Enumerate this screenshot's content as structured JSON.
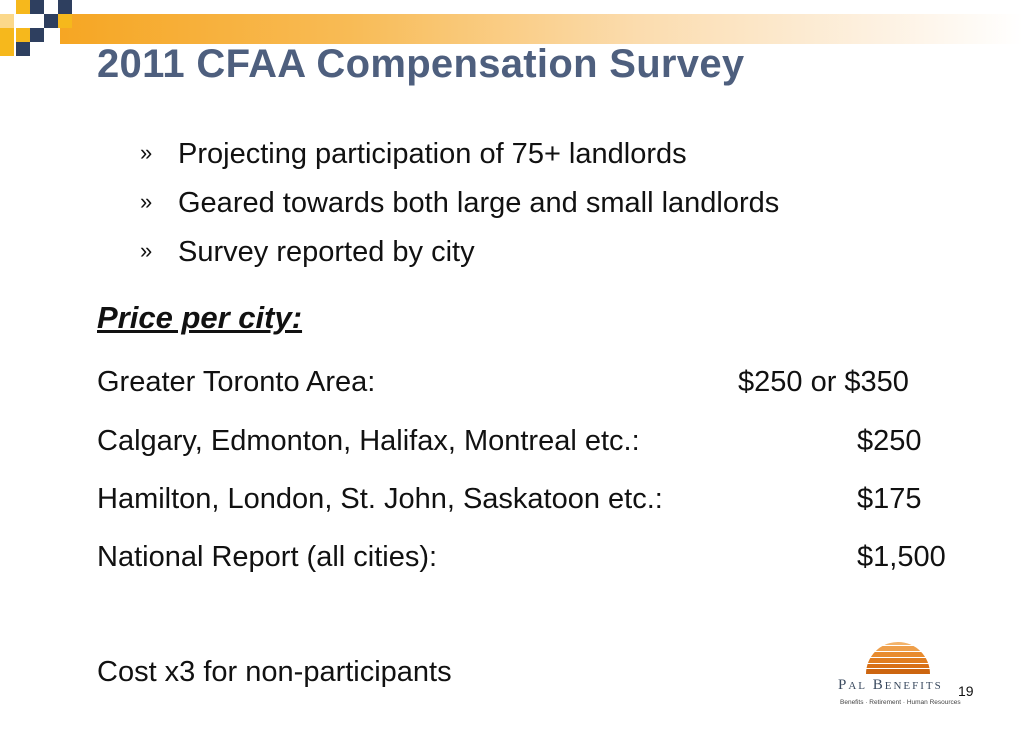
{
  "slide": {
    "title": "2011 CFAA Compensation Survey",
    "bullet_marker": "»",
    "bullets": [
      "Projecting participation of 75+ landlords",
      "Geared towards both large and small landlords",
      "Survey reported by city"
    ],
    "pricing": {
      "heading": "Price per city:",
      "rows": [
        {
          "label": "Greater Toronto Area:",
          "price": "$250 or $350"
        },
        {
          "label": "Calgary, Edmonton, Halifax, Montreal etc.:",
          "price": "$250"
        },
        {
          "label": "Hamilton, London, St. John, Saskatoon etc.:",
          "price": "$175"
        },
        {
          "label": "National Report (all cities):",
          "price": "$1,500"
        }
      ]
    },
    "note": "Cost x3 for non-participants",
    "page_number": "19"
  },
  "logo": {
    "name": "Pal Benefits",
    "tagline": "Benefits · Retirement · Human Resources",
    "icon": "sunrise-logo-icon"
  },
  "colors": {
    "title": "#4e5f7e",
    "accent_orange": "#f6a623",
    "square_navy": "#2e3f5f",
    "square_yellow": "#f6b81c",
    "logo_orange": "#e88b2e"
  }
}
